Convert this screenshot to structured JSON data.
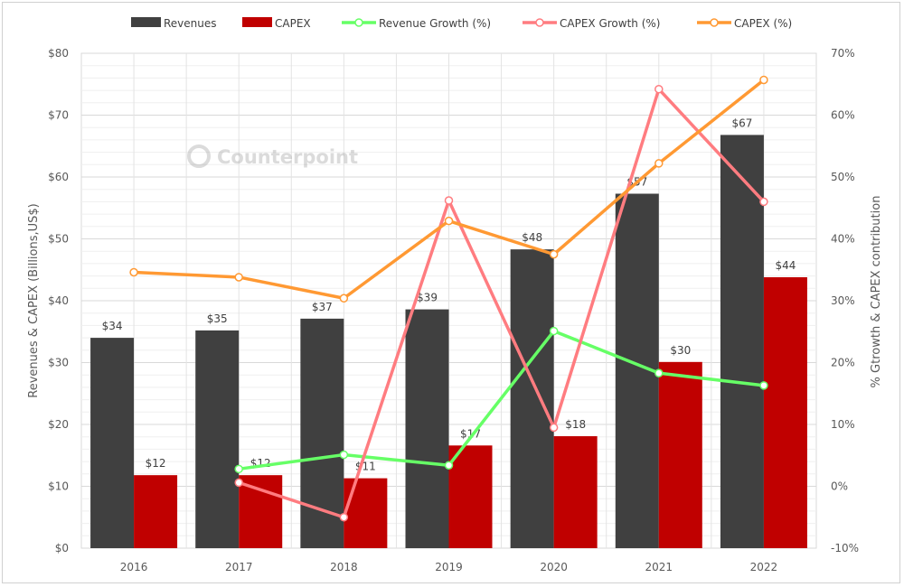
{
  "chart_data": {
    "type": "bar+line",
    "categories": [
      "2016",
      "2017",
      "2018",
      "2019",
      "2020",
      "2021",
      "2022"
    ],
    "bar_series": [
      {
        "name": "Revenues",
        "color": "#404040",
        "values": [
          34.0,
          35.2,
          37.1,
          38.6,
          48.3,
          57.3,
          66.8
        ],
        "labels": [
          "$34",
          "$35",
          "$37",
          "$39",
          "$48",
          "$57",
          "$67"
        ]
      },
      {
        "name": "CAPEX",
        "color": "#c00000",
        "values": [
          11.8,
          11.8,
          11.3,
          16.6,
          18.1,
          30.1,
          43.8
        ],
        "labels": [
          "$12",
          "$12",
          "$11",
          "$17",
          "$18",
          "$30",
          "$44"
        ]
      }
    ],
    "line_series": [
      {
        "name": "Revenue Growth (%)",
        "color": "#66ff66",
        "values": [
          null,
          2.8,
          5.1,
          3.4,
          25.1,
          18.3,
          16.3
        ]
      },
      {
        "name": "CAPEX Growth (%)",
        "color": "#ff7c80",
        "values": [
          null,
          0.6,
          -5.0,
          46.2,
          9.5,
          64.2,
          46.0
        ]
      },
      {
        "name": "CAPEX (%)",
        "color": "#ff9933",
        "values": [
          34.6,
          33.8,
          30.4,
          42.9,
          37.5,
          52.2,
          65.7
        ]
      }
    ],
    "y_left": {
      "label": "Revenues & CAPEX (Billions,US$)",
      "range": [
        0,
        80
      ],
      "ticks": [
        "$0",
        "$10",
        "$20",
        "$30",
        "$40",
        "$50",
        "$60",
        "$70",
        "$80"
      ]
    },
    "y_right": {
      "label": "% Gtrowth & CAPEX contribution",
      "range": [
        -10,
        70
      ],
      "ticks": [
        "-10%",
        "0%",
        "10%",
        "20%",
        "30%",
        "40%",
        "50%",
        "60%",
        "70%"
      ]
    },
    "legend_position": "top",
    "grid": true,
    "watermark": "Counterpoint"
  }
}
